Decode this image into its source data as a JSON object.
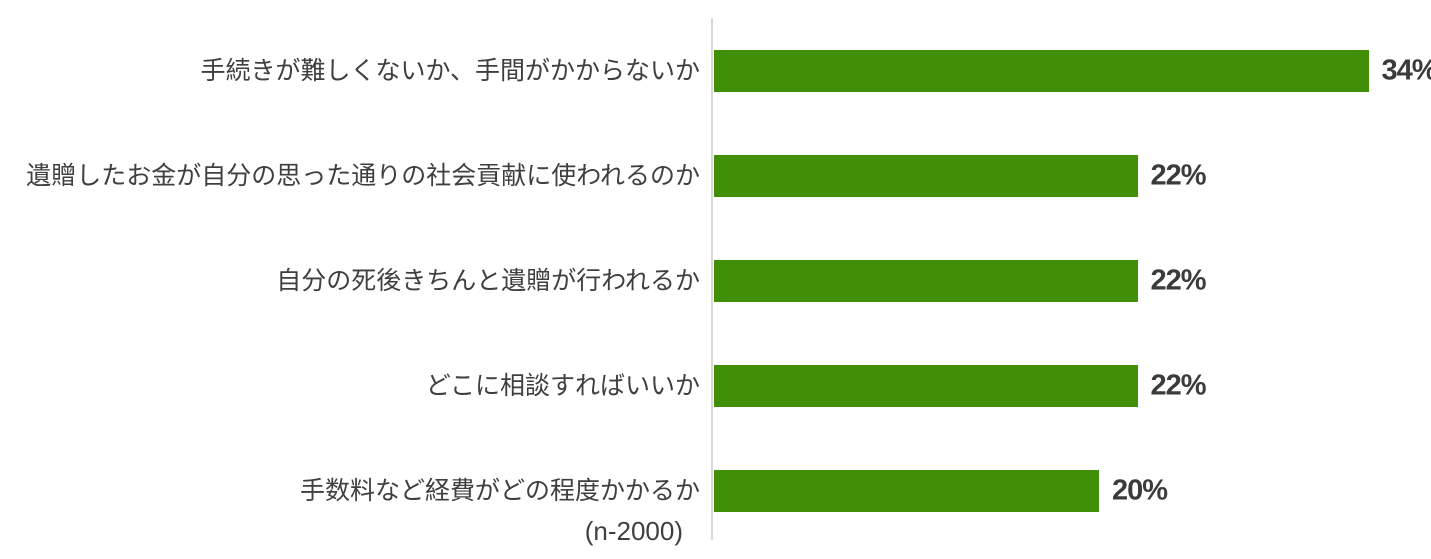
{
  "chart_data": {
    "type": "bar",
    "orientation": "horizontal",
    "title": "",
    "categories": [
      "手続きが難しくないか、手間がかからないか",
      "遺贈したお金が自分の思った通りの社会貢献に使われるのか",
      "自分の死後きちんと遺贈が行われるか",
      "どこに相談すればいいか",
      "手数料など経費がどの程度かかるか"
    ],
    "values": [
      34,
      22,
      22,
      22,
      20
    ],
    "value_labels": [
      "34%",
      "22%",
      "22%",
      "22%",
      "20%"
    ],
    "footnote": "(n-2000)",
    "xlim": [
      0,
      37.3
    ],
    "grid": false,
    "legend": false,
    "colors": {
      "bar": "#418F06",
      "axis_line": "#D9D9D9",
      "category_text": "#3F3F3F",
      "value_text": "#3B3B3B",
      "background": "#FFFFFF"
    }
  }
}
